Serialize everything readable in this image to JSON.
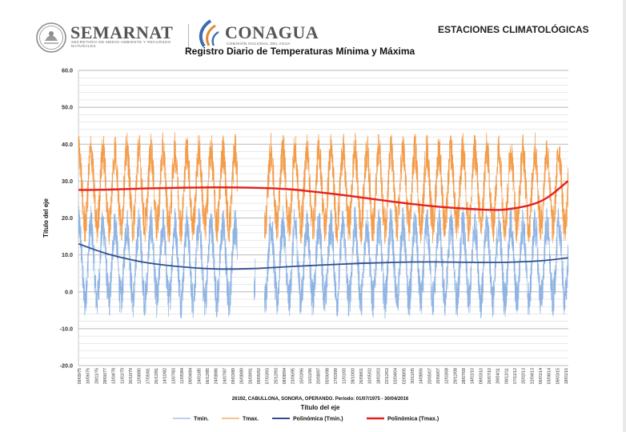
{
  "header": {
    "semarnat_name": "SEMARNAT",
    "semarnat_sub": "SECRETARÍA DE MEDIO AMBIENTE Y RECURSOS NATURALES",
    "conagua_name": "CONAGUA",
    "conagua_sub": "COMISIÓN NACIONAL DEL AGUA",
    "right_title": "ESTACIONES CLIMATOLÓGICAS"
  },
  "colors": {
    "tmin": "#8fb4e3",
    "tmax": "#f39c4a",
    "poly_tmin": "#2f4e8c",
    "poly_tmax": "#e4201f",
    "grid": "#cfcfcf",
    "axis": "#bdbdbd",
    "sem_logo": "#8c8c8c",
    "con_logo_blue": "#3c6db1",
    "con_logo_orange": "#e08a2c"
  },
  "chart_data": {
    "type": "line",
    "title": "Registro Diario de Temperaturas Mínima y Máxima",
    "ylabel": "Título del eje",
    "xlabel": "Título del eje",
    "caption": "26192, CABULLONA, SONORA, OPERANDO. Periodo: 01/07/1975 - 30/04/2016",
    "ylim": [
      -20,
      60
    ],
    "y_ticks": [
      "60.0",
      "50.0",
      "40.0",
      "30.0",
      "20.0",
      "10.0",
      "0.0",
      "-10.0",
      "-20.0"
    ],
    "x_range": [
      "1975-07-01",
      "2016-04-30"
    ],
    "x_ticks": [
      "09/09/75",
      "16/06/76",
      "28/11/76",
      "28/06/77",
      "13/04/78",
      "11/01/79",
      "30/10/79",
      "12/08/80",
      "17/05/81",
      "26/12/81",
      "14/10/82",
      "13/07/83",
      "11/05/84",
      "09/04/84",
      "24/01/85",
      "06/12/85",
      "24/08/86",
      "24/07/87",
      "09/03/89",
      "26/08/89",
      "26/09/91",
      "09/05/92",
      "07/03/93",
      "25/12/93",
      "08/08/94",
      "23/06/95",
      "15/03/96",
      "16/11/96",
      "20/08/97",
      "05/06/98",
      "17/03/99",
      "11/01/00",
      "28/10/00",
      "26/08/01",
      "10/05/02",
      "18/02/03",
      "22/12/03",
      "02/04/04",
      "02/08/05",
      "30/11/05",
      "14/08/06",
      "20/05/07",
      "15/06/07",
      "12/03/08",
      "29/12/08",
      "28/07/09",
      "14/01/10",
      "09/03/10",
      "26/07/10",
      "28/04/11",
      "08/12/11",
      "07/11/12",
      "15/02/13",
      "22/04/13",
      "06/01/14",
      "03/08/14",
      "09/03/15",
      "18/01/16"
    ],
    "series": [
      {
        "name": "Tmin.",
        "type": "daily-line",
        "seasonal_range": {
          "winter_min": -6,
          "summer_max": 22
        },
        "gaps": [
          [
            "1988-10-01",
            "1990-02-15"
          ],
          [
            "1990-04-01",
            "1990-12-31"
          ]
        ],
        "note": "dense daily values oscillating seasonally"
      },
      {
        "name": "Tmax.",
        "type": "daily-line",
        "seasonal_range": {
          "winter_min": 14,
          "summer_max": 42
        },
        "gaps": [
          [
            "1988-10-01",
            "1990-12-31"
          ]
        ],
        "note": "dense daily values oscillating seasonally"
      },
      {
        "name": "Polinómica (Tmin.)",
        "type": "trend",
        "x_years": [
          1975.5,
          1978,
          1981,
          1984,
          1987,
          1990,
          1993,
          1996,
          1999,
          2002,
          2005,
          2008,
          2011,
          2014,
          2016.3
        ],
        "values": [
          13,
          10.2,
          8,
          6.8,
          6.2,
          6.3,
          6.8,
          7.3,
          7.7,
          8,
          8.1,
          8,
          8,
          8.4,
          9.2
        ]
      },
      {
        "name": "Polinómica (Tmax.)",
        "type": "trend",
        "x_years": [
          1975.5,
          1978,
          1981,
          1984,
          1987,
          1990,
          1993,
          1996,
          1999,
          2002,
          2005,
          2008,
          2011,
          2014,
          2016.3
        ],
        "values": [
          27.6,
          27.7,
          28,
          28.2,
          28.3,
          28.2,
          27.8,
          26.8,
          25.6,
          24.3,
          23.2,
          22.5,
          22.3,
          24.5,
          30
        ]
      }
    ],
    "grid": true,
    "legend_position": "bottom"
  }
}
